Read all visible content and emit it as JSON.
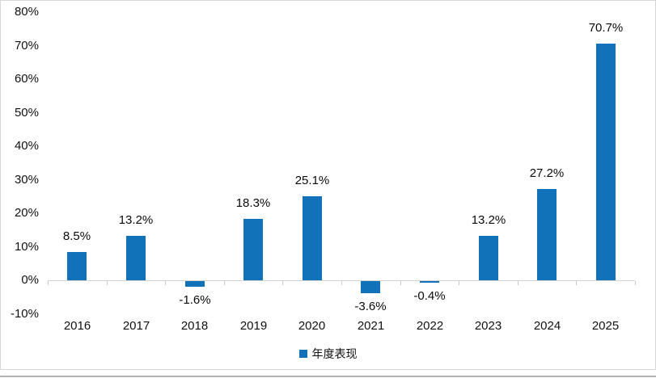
{
  "chart_data": {
    "type": "bar",
    "title": "",
    "categories": [
      "2016",
      "2017",
      "2018",
      "2019",
      "2020",
      "2021",
      "2022",
      "2023",
      "2024",
      "2025"
    ],
    "series": [
      {
        "name": "年度表现",
        "values": [
          8.5,
          13.2,
          -1.6,
          18.3,
          25.1,
          -3.6,
          -0.4,
          13.2,
          27.2,
          70.7
        ]
      }
    ],
    "data_labels": [
      "8.5%",
      "13.2%",
      "-1.6%",
      "18.3%",
      "25.1%",
      "-3.6%",
      "-0.4%",
      "13.2%",
      "27.2%",
      "70.7%"
    ],
    "y_tick_labels": [
      "80%",
      "70%",
      "60%",
      "50%",
      "40%",
      "30%",
      "20%",
      "10%",
      "0%",
      "-10%"
    ],
    "y_tick_values": [
      80,
      70,
      60,
      50,
      40,
      30,
      20,
      10,
      0,
      -10
    ],
    "ylim": [
      -10,
      80
    ],
    "xlabel": "",
    "ylabel": "",
    "grid": false,
    "legend_position": "bottom"
  },
  "legend": {
    "label": "年度表现"
  },
  "colors": {
    "bar": "#1272b9",
    "axis_line": "#d2d2d2",
    "text": "#111111",
    "frame_border": "#d6d6d6",
    "bottom_rule": "#b3b3b3"
  }
}
